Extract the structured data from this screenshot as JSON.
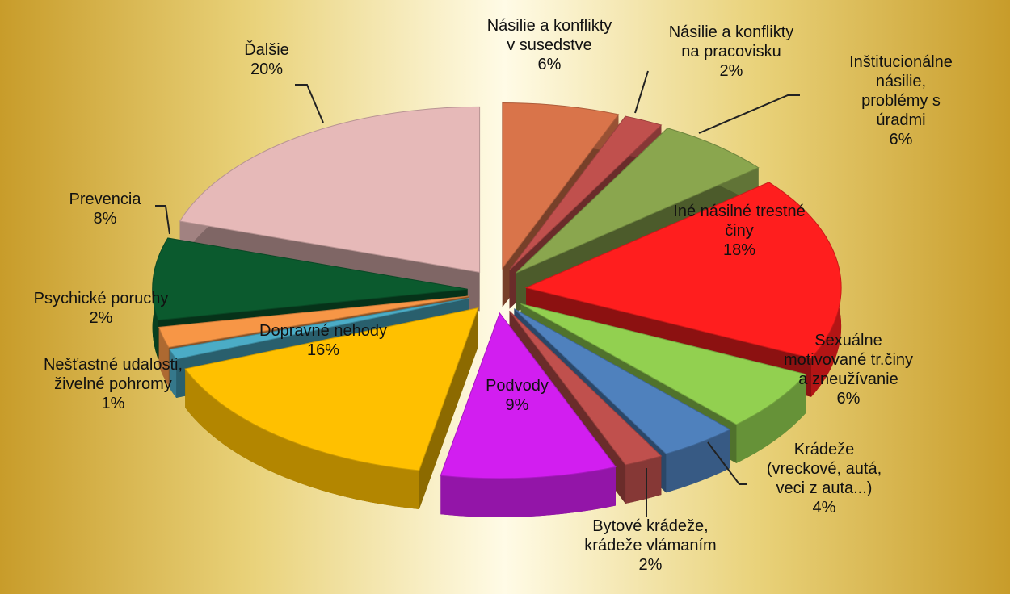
{
  "chart_data": {
    "type": "pie",
    "categories": [
      "Násilie a konflikty\nv susedstve",
      "Násilie a konflikty\nna pracovisku",
      "Inštitucionálne\nnásilie, problémy s\núradmi",
      "Iné násilné trestné\nčiny",
      "Sexuálne\nmotivované tr.činy\na zneužívanie",
      "Krádeže\n(vreckové, autá,\nveci z auta...)",
      "Bytové krádeže,\nkrádeže vlámaním",
      "Podvody",
      "Dopravné nehody",
      "Nešťastné udalosti,\nživelné pohromy",
      "Psychické poruchy",
      "Prevencia",
      "Ďalšie"
    ],
    "values": [
      6,
      2,
      6,
      18,
      6,
      4,
      2,
      9,
      16,
      1,
      2,
      8,
      20
    ],
    "value_labels": [
      "6%",
      "2%",
      "6%",
      "18%",
      "6%",
      "4%",
      "2%",
      "9%",
      "16%",
      "1%",
      "2%",
      "8%",
      "20%"
    ],
    "colors": [
      "#d9744a",
      "#c0504d",
      "#8aa64e",
      "#ff1e1e",
      "#92d050",
      "#4f81bd",
      "#c0504d",
      "#d21ef0",
      "#ffc000",
      "#4bacc6",
      "#f79646",
      "#0b5a2e",
      "#e6b9b8"
    ]
  }
}
